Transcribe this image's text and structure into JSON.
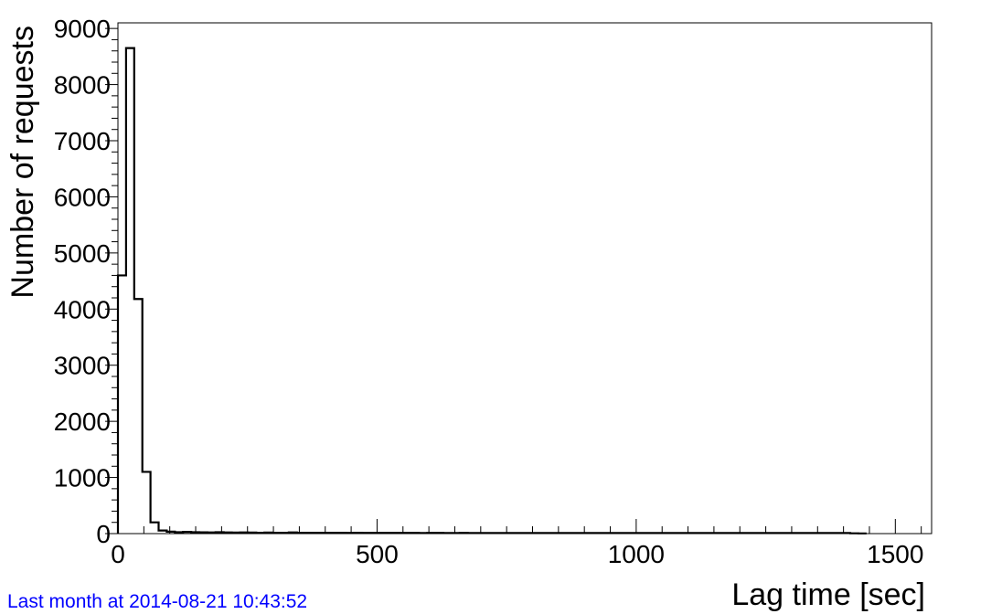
{
  "chart_data": {
    "type": "bar",
    "style": "step-histogram",
    "xlabel": "Lag time [sec]",
    "ylabel": "Number of requests",
    "xlim": [
      0,
      1570
    ],
    "ylim": [
      0,
      9100
    ],
    "x_ticks": [
      0,
      500,
      1000,
      1500
    ],
    "y_ticks": [
      0,
      1000,
      2000,
      3000,
      4000,
      5000,
      6000,
      7000,
      8000,
      9000
    ],
    "bin_width": 15.7,
    "values": [
      4600,
      8650,
      4180,
      1100,
      200,
      55,
      35,
      25,
      30,
      25,
      22,
      20,
      25,
      20,
      18,
      20,
      18,
      15,
      18,
      15,
      15,
      20,
      15,
      15,
      15,
      15,
      15,
      15,
      12,
      15,
      12,
      12,
      12,
      12,
      12,
      12,
      12,
      10,
      12,
      12,
      10,
      10,
      12,
      10,
      10,
      10,
      10,
      10,
      10,
      10,
      10,
      10,
      10,
      10,
      10,
      10,
      10,
      10,
      10,
      10,
      10,
      10,
      10,
      10,
      10,
      10,
      10,
      10,
      10,
      10,
      10,
      10,
      10,
      10,
      10,
      10,
      10,
      10,
      10,
      10,
      10,
      10,
      10,
      10,
      10,
      10,
      10,
      10,
      10,
      10,
      5,
      3
    ],
    "grid": false
  },
  "footer": {
    "text": "Last month at 2014-08-21 10:43:52"
  }
}
